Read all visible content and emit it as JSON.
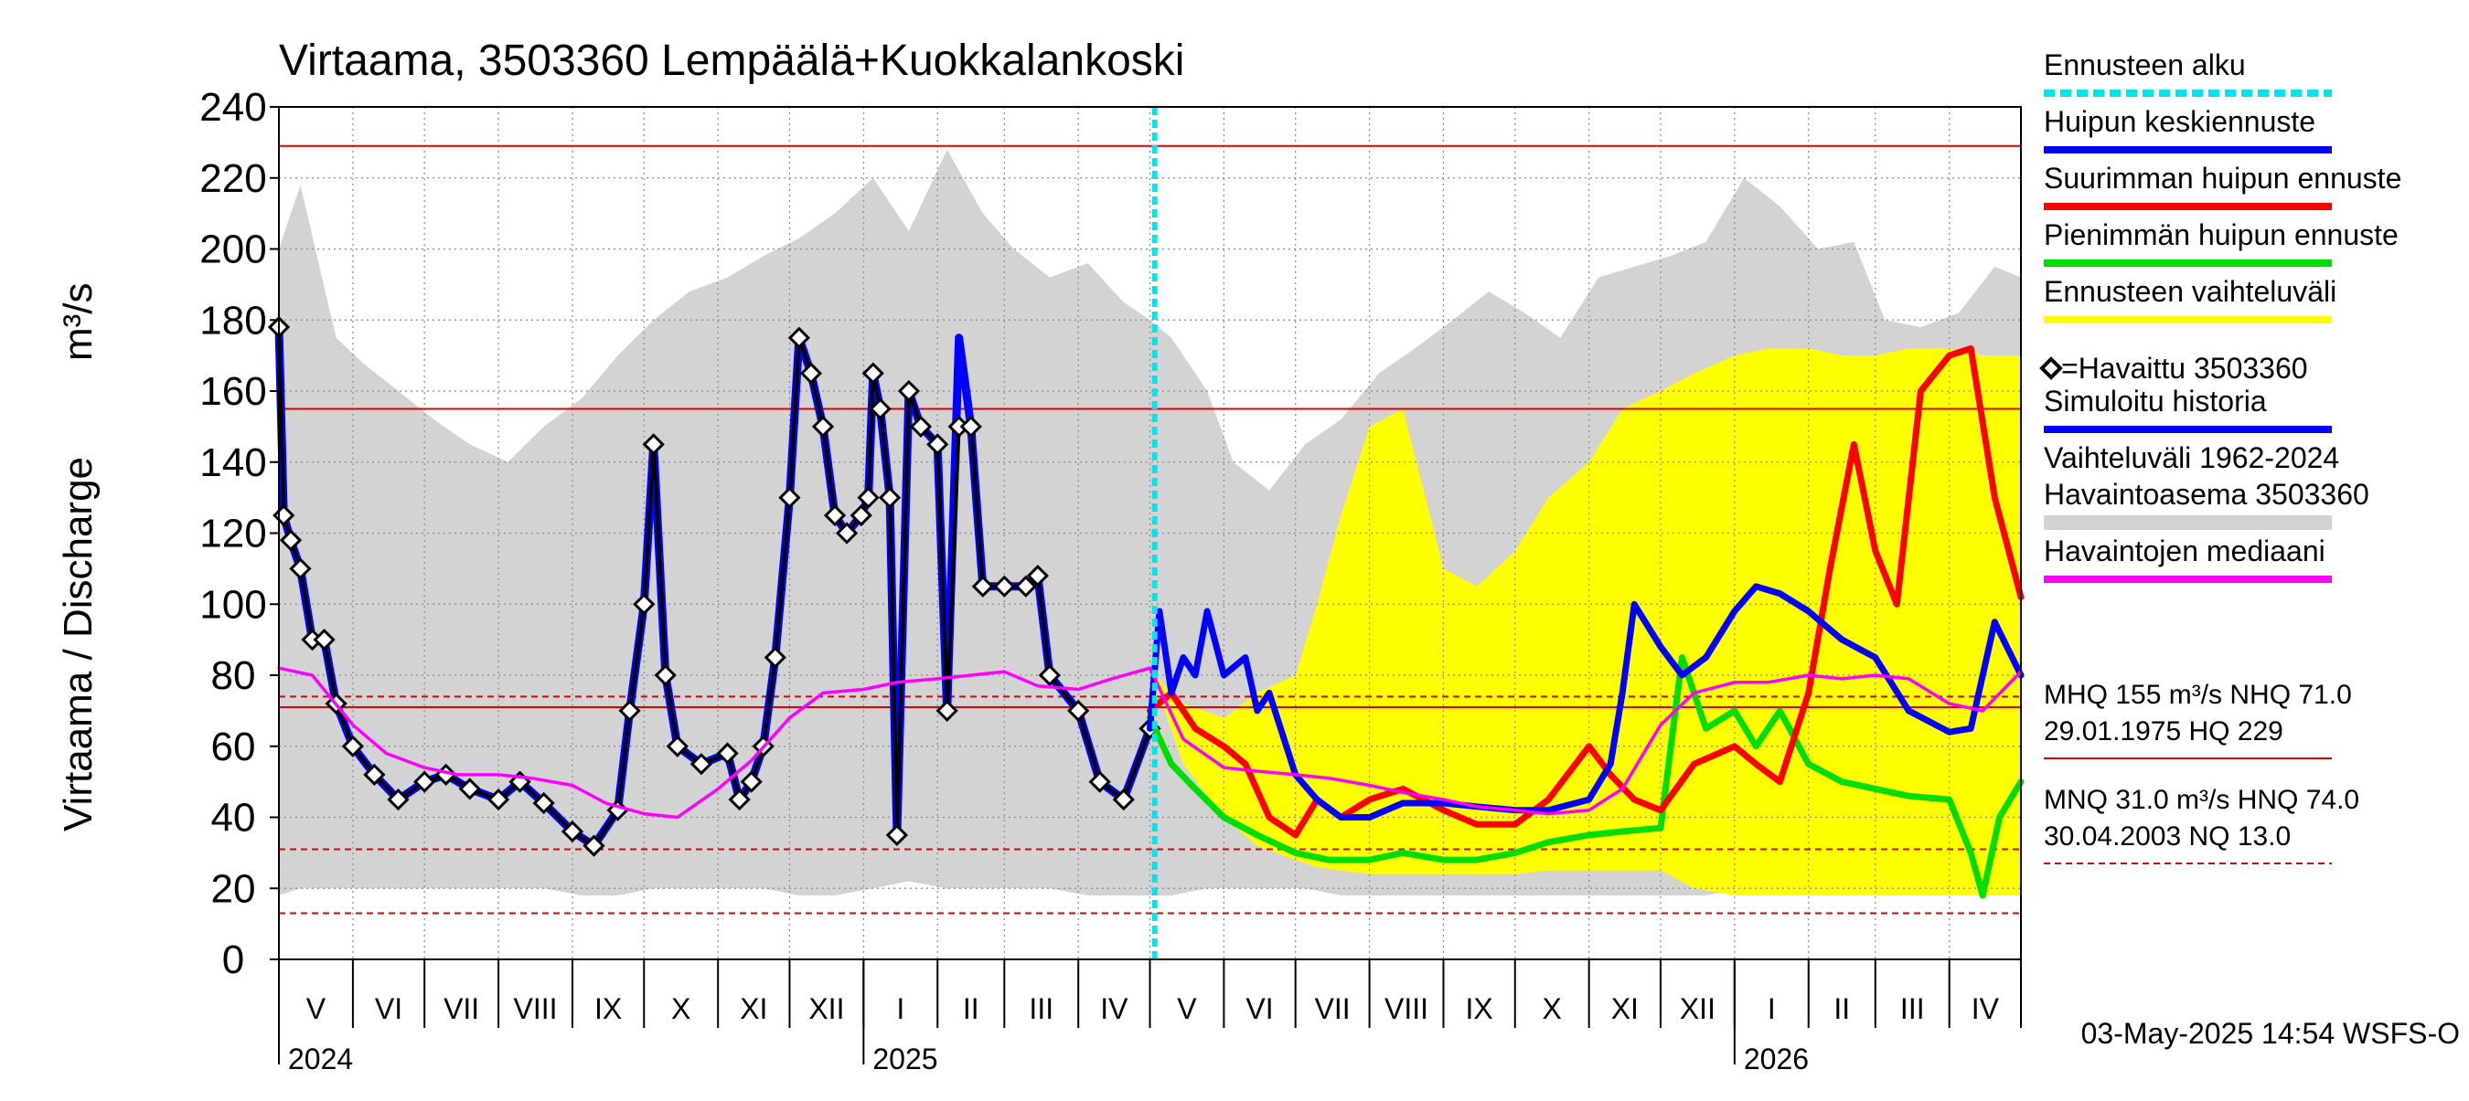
{
  "title": "Virtaama, 3503360 Lempäälä+Kuokkalankoski",
  "timestamp": "03-May-2025 14:54 WSFS-O",
  "y_axis_label": "Virtaama / Discharge",
  "y_axis_unit": "m³/s",
  "chart_data": {
    "type": "line",
    "x_range": [
      "2024-05-01",
      "2026-05-01"
    ],
    "ylim": [
      0,
      240
    ],
    "y_ticks": [
      0,
      20,
      40,
      60,
      80,
      100,
      120,
      140,
      160,
      180,
      200,
      220,
      240
    ],
    "grid": true,
    "month_labels": [
      "V",
      "VI",
      "VII",
      "VIII",
      "IX",
      "X",
      "XI",
      "XII",
      "I",
      "II",
      "III",
      "IV",
      "V",
      "VI",
      "VII",
      "VIII",
      "IX",
      "X",
      "XI",
      "XII",
      "I",
      "II",
      "III",
      "IV"
    ],
    "month_starts": [
      "2024-05-01",
      "2024-06-01",
      "2024-07-01",
      "2024-08-01",
      "2024-09-01",
      "2024-10-01",
      "2024-11-01",
      "2024-12-01",
      "2025-01-01",
      "2025-02-01",
      "2025-03-01",
      "2025-04-01",
      "2025-05-01",
      "2025-06-01",
      "2025-07-01",
      "2025-08-01",
      "2025-09-01",
      "2025-10-01",
      "2025-11-01",
      "2025-12-01",
      "2026-01-01",
      "2026-02-01",
      "2026-03-01",
      "2026-04-01"
    ],
    "year_labels": [
      {
        "label": "2024",
        "date": "2024-05-01"
      },
      {
        "label": "2025",
        "date": "2025-01-01"
      },
      {
        "label": "2026",
        "date": "2026-01-01"
      }
    ],
    "forecast_start": "2025-05-03",
    "reference_lines": [
      {
        "name": "HQ",
        "value": 229,
        "style": "solid"
      },
      {
        "name": "MHQ",
        "value": 155,
        "style": "solid"
      },
      {
        "name": "HNQ",
        "value": 74,
        "style": "dashed"
      },
      {
        "name": "NHQ",
        "value": 71,
        "style": "solid"
      },
      {
        "name": "MNQ",
        "value": 31,
        "style": "dashed"
      },
      {
        "name": "NQ",
        "value": 13,
        "style": "dashed"
      }
    ],
    "history_band": {
      "name": "Vaihteluväli 1962-2024 Havaintoasema 3503360",
      "color": "#d3d3d3",
      "x": [
        "2024-05-01",
        "2024-05-10",
        "2024-05-25",
        "2024-06-05",
        "2024-06-20",
        "2024-07-05",
        "2024-07-20",
        "2024-08-05",
        "2024-08-20",
        "2024-09-05",
        "2024-09-20",
        "2024-10-05",
        "2024-10-20",
        "2024-11-05",
        "2024-11-20",
        "2024-12-05",
        "2024-12-20",
        "2025-01-05",
        "2025-01-20",
        "2025-02-05",
        "2025-02-20",
        "2025-03-05",
        "2025-03-20",
        "2025-04-05",
        "2025-04-20",
        "2025-05-01",
        "2025-05-10",
        "2025-05-25",
        "2025-06-05",
        "2025-06-20",
        "2025-07-05",
        "2025-07-20",
        "2025-08-05",
        "2025-08-20",
        "2025-09-05",
        "2025-09-20",
        "2025-10-05",
        "2025-10-20",
        "2025-11-05",
        "2025-11-20",
        "2025-12-05",
        "2025-12-20",
        "2026-01-05",
        "2026-01-20",
        "2026-02-05",
        "2026-02-20",
        "2026-03-05",
        "2026-03-20",
        "2026-04-05",
        "2026-04-20",
        "2026-05-01"
      ],
      "upper": [
        200,
        218,
        175,
        168,
        160,
        152,
        145,
        140,
        150,
        158,
        170,
        180,
        188,
        192,
        198,
        203,
        210,
        220,
        205,
        228,
        210,
        200,
        192,
        196,
        185,
        180,
        175,
        160,
        140,
        132,
        145,
        152,
        165,
        172,
        180,
        188,
        182,
        175,
        192,
        195,
        198,
        202,
        220,
        212,
        200,
        202,
        180,
        178,
        182,
        195,
        192
      ],
      "lower": [
        18,
        20,
        20,
        20,
        20,
        20,
        20,
        20,
        20,
        18,
        18,
        20,
        20,
        20,
        20,
        18,
        18,
        20,
        22,
        20,
        20,
        20,
        20,
        18,
        18,
        18,
        18,
        20,
        20,
        20,
        20,
        18,
        18,
        18,
        18,
        18,
        18,
        18,
        18,
        18,
        18,
        18,
        20,
        20,
        20,
        20,
        20,
        18,
        18,
        18,
        18
      ]
    },
    "forecast_band": {
      "name": "Ennusteen vaihteluväli",
      "color": "#ffff00",
      "x": [
        "2025-05-03",
        "2025-05-15",
        "2025-06-01",
        "2025-06-15",
        "2025-07-01",
        "2025-07-10",
        "2025-07-20",
        "2025-08-01",
        "2025-08-15",
        "2025-09-01",
        "2025-09-15",
        "2025-10-01",
        "2025-10-15",
        "2025-11-01",
        "2025-11-15",
        "2025-12-01",
        "2025-12-15",
        "2026-01-01",
        "2026-01-15",
        "2026-02-01",
        "2026-02-15",
        "2026-03-01",
        "2026-03-15",
        "2026-04-01",
        "2026-04-15",
        "2026-05-01"
      ],
      "upper": [
        80,
        72,
        68,
        75,
        80,
        100,
        125,
        150,
        155,
        110,
        105,
        115,
        130,
        140,
        155,
        160,
        165,
        170,
        172,
        172,
        170,
        170,
        172,
        172,
        170,
        170
      ],
      "lower": [
        78,
        55,
        40,
        32,
        28,
        26,
        25,
        24,
        24,
        24,
        24,
        24,
        25,
        25,
        25,
        25,
        20,
        18,
        18,
        18,
        18,
        18,
        18,
        18,
        18,
        18
      ]
    },
    "series": [
      {
        "name": "Simuloitu historia",
        "color": "#0000ff",
        "x": [
          "2024-05-01",
          "2024-05-03",
          "2024-05-06",
          "2024-05-10",
          "2024-05-15",
          "2024-05-20",
          "2024-05-25",
          "2024-06-01",
          "2024-06-10",
          "2024-06-20",
          "2024-07-01",
          "2024-07-10",
          "2024-07-20",
          "2024-08-01",
          "2024-08-10",
          "2024-08-20",
          "2024-09-01",
          "2024-09-10",
          "2024-09-20",
          "2024-09-25",
          "2024-10-01",
          "2024-10-05",
          "2024-10-10",
          "2024-10-15",
          "2024-10-25",
          "2024-11-05",
          "2024-11-10",
          "2024-11-15",
          "2024-11-20",
          "2024-11-25",
          "2024-12-01",
          "2024-12-05",
          "2024-12-10",
          "2024-12-15",
          "2024-12-20",
          "2024-12-25",
          "2024-12-31",
          "2025-01-03",
          "2025-01-05",
          "2025-01-08",
          "2025-01-12",
          "2025-01-15",
          "2025-01-20",
          "2025-01-25",
          "2025-02-01",
          "2025-02-05",
          "2025-02-10",
          "2025-02-15",
          "2025-02-20",
          "2025-03-01",
          "2025-03-10",
          "2025-03-15",
          "2025-03-20",
          "2025-04-01",
          "2025-04-10",
          "2025-04-20",
          "2025-05-01"
        ],
        "values": [
          178,
          125,
          118,
          110,
          90,
          90,
          72,
          60,
          52,
          45,
          50,
          52,
          48,
          45,
          50,
          44,
          36,
          32,
          42,
          70,
          100,
          145,
          80,
          60,
          55,
          58,
          45,
          50,
          60,
          85,
          130,
          175,
          165,
          150,
          125,
          120,
          125,
          130,
          165,
          155,
          130,
          35,
          160,
          150,
          145,
          70,
          175,
          150,
          105,
          105,
          105,
          108,
          80,
          70,
          50,
          45,
          65
        ]
      },
      {
        "name": "Havaittu 3503360",
        "color": "#000000",
        "marker": "diamond",
        "x": [
          "2024-05-01",
          "2024-05-03",
          "2024-05-06",
          "2024-05-10",
          "2024-05-15",
          "2024-05-20",
          "2024-05-25",
          "2024-06-01",
          "2024-06-10",
          "2024-06-20",
          "2024-07-01",
          "2024-07-10",
          "2024-07-20",
          "2024-08-01",
          "2024-08-10",
          "2024-08-20",
          "2024-09-01",
          "2024-09-10",
          "2024-09-20",
          "2024-09-25",
          "2024-10-01",
          "2024-10-05",
          "2024-10-10",
          "2024-10-15",
          "2024-10-25",
          "2024-11-05",
          "2024-11-10",
          "2024-11-15",
          "2024-11-20",
          "2024-11-25",
          "2024-12-01",
          "2024-12-05",
          "2024-12-10",
          "2024-12-15",
          "2024-12-20",
          "2024-12-25",
          "2024-12-31",
          "2025-01-03",
          "2025-01-05",
          "2025-01-08",
          "2025-01-12",
          "2025-01-15",
          "2025-01-20",
          "2025-01-25",
          "2025-02-01",
          "2025-02-05",
          "2025-02-10",
          "2025-02-15",
          "2025-02-20",
          "2025-03-01",
          "2025-03-10",
          "2025-03-15",
          "2025-03-20",
          "2025-04-01",
          "2025-04-10",
          "2025-04-20",
          "2025-05-01"
        ],
        "values": [
          178,
          125,
          118,
          110,
          90,
          90,
          72,
          60,
          52,
          45,
          50,
          52,
          48,
          45,
          50,
          44,
          36,
          32,
          42,
          70,
          100,
          145,
          80,
          60,
          55,
          58,
          45,
          50,
          60,
          85,
          130,
          175,
          165,
          150,
          125,
          120,
          125,
          130,
          165,
          155,
          130,
          35,
          160,
          150,
          145,
          70,
          150,
          150,
          105,
          105,
          105,
          108,
          80,
          70,
          50,
          45,
          65
        ]
      },
      {
        "name": "Havaintojen mediaani",
        "color": "#ff00ff",
        "x": [
          "2024-05-01",
          "2024-05-15",
          "2024-06-01",
          "2024-06-15",
          "2024-07-01",
          "2024-07-15",
          "2024-08-01",
          "2024-08-15",
          "2024-09-01",
          "2024-09-15",
          "2024-10-01",
          "2024-10-15",
          "2024-11-01",
          "2024-11-15",
          "2024-12-01",
          "2024-12-15",
          "2025-01-01",
          "2025-01-15",
          "2025-02-01",
          "2025-02-15",
          "2025-03-01",
          "2025-03-15",
          "2025-04-01",
          "2025-04-15",
          "2025-05-01",
          "2025-05-15",
          "2025-06-01",
          "2025-06-15",
          "2025-07-01",
          "2025-07-15",
          "2025-08-01",
          "2025-08-15",
          "2025-09-01",
          "2025-09-15",
          "2025-10-01",
          "2025-10-15",
          "2025-11-01",
          "2025-11-15",
          "2025-12-01",
          "2025-12-15",
          "2026-01-01",
          "2026-01-15",
          "2026-02-01",
          "2026-02-15",
          "2026-03-01",
          "2026-03-15",
          "2026-04-01",
          "2026-04-15",
          "2026-05-01"
        ],
        "values": [
          82,
          80,
          66,
          58,
          54,
          52,
          52,
          51,
          49,
          44,
          41,
          40,
          48,
          56,
          68,
          75,
          76,
          78,
          79,
          80,
          81,
          77,
          76,
          79,
          82,
          62,
          54,
          53,
          52,
          51,
          49,
          47,
          45,
          43,
          42,
          41,
          42,
          48,
          66,
          75,
          78,
          78,
          80,
          79,
          80,
          79,
          72,
          70,
          81
        ]
      },
      {
        "name": "Huipun keskiennuste",
        "color": "#0000ff",
        "x": [
          "2025-05-01",
          "2025-05-05",
          "2025-05-10",
          "2025-05-15",
          "2025-05-20",
          "2025-05-25",
          "2025-06-01",
          "2025-06-10",
          "2025-06-15",
          "2025-06-20",
          "2025-07-01",
          "2025-07-10",
          "2025-07-20",
          "2025-08-01",
          "2025-08-15",
          "2025-09-01",
          "2025-09-15",
          "2025-10-01",
          "2025-10-15",
          "2025-11-01",
          "2025-11-10",
          "2025-11-15",
          "2025-11-20",
          "2025-12-01",
          "2025-12-10",
          "2025-12-20",
          "2026-01-01",
          "2026-01-10",
          "2026-01-20",
          "2026-02-01",
          "2026-02-15",
          "2026-03-01",
          "2026-03-15",
          "2026-04-01",
          "2026-04-10",
          "2026-04-20",
          "2026-05-01"
        ],
        "values": [
          65,
          98,
          75,
          85,
          80,
          98,
          80,
          85,
          70,
          75,
          52,
          45,
          40,
          40,
          44,
          44,
          43,
          42,
          42,
          45,
          55,
          75,
          100,
          88,
          80,
          85,
          98,
          105,
          103,
          98,
          90,
          85,
          70,
          64,
          65,
          95,
          80
        ]
      },
      {
        "name": "Suurimman huipun ennuste",
        "color": "#ff0000",
        "x": [
          "2025-05-01",
          "2025-05-10",
          "2025-05-20",
          "2025-06-01",
          "2025-06-10",
          "2025-06-20",
          "2025-07-01",
          "2025-07-10",
          "2025-07-20",
          "2025-08-01",
          "2025-08-15",
          "2025-09-01",
          "2025-09-15",
          "2025-10-01",
          "2025-10-15",
          "2025-11-01",
          "2025-11-10",
          "2025-11-20",
          "2025-12-01",
          "2025-12-15",
          "2026-01-01",
          "2026-01-10",
          "2026-01-20",
          "2026-02-01",
          "2026-02-10",
          "2026-02-20",
          "2026-03-01",
          "2026-03-10",
          "2026-03-20",
          "2026-04-01",
          "2026-04-10",
          "2026-04-20",
          "2026-05-01"
        ],
        "values": [
          70,
          75,
          65,
          60,
          55,
          40,
          35,
          45,
          40,
          45,
          48,
          42,
          38,
          38,
          45,
          60,
          52,
          45,
          42,
          55,
          60,
          55,
          50,
          75,
          110,
          145,
          115,
          100,
          160,
          170,
          172,
          130,
          102
        ]
      },
      {
        "name": "Pienimmän huipun ennuste",
        "color": "#00dd00",
        "x": [
          "2025-05-01",
          "2025-05-10",
          "2025-05-20",
          "2025-06-01",
          "2025-06-15",
          "2025-07-01",
          "2025-07-15",
          "2025-08-01",
          "2025-08-15",
          "2025-09-01",
          "2025-09-15",
          "2025-10-01",
          "2025-10-15",
          "2025-11-01",
          "2025-11-15",
          "2025-12-01",
          "2025-12-10",
          "2025-12-20",
          "2026-01-01",
          "2026-01-10",
          "2026-01-20",
          "2026-02-01",
          "2026-02-15",
          "2026-03-01",
          "2026-03-15",
          "2026-04-01",
          "2026-04-10",
          "2026-04-15",
          "2026-04-22",
          "2026-05-01"
        ],
        "values": [
          68,
          55,
          48,
          40,
          35,
          30,
          28,
          28,
          30,
          28,
          28,
          30,
          33,
          35,
          36,
          37,
          85,
          65,
          70,
          60,
          70,
          55,
          50,
          48,
          46,
          45,
          30,
          18,
          40,
          50
        ]
      }
    ],
    "legend": [
      {
        "label": "Ennusteen alku",
        "color": "#00e5ee",
        "style": "dashed"
      },
      {
        "label": "Huipun keskiennuste",
        "color": "#0000ff",
        "style": "line"
      },
      {
        "label": "Suurimman huipun ennuste",
        "color": "#ff0000",
        "style": "line"
      },
      {
        "label": "Pienimmän huipun ennuste",
        "color": "#00dd00",
        "style": "line"
      },
      {
        "label": "Ennusteen vaihteluväli",
        "color": "#ffff00",
        "style": "line"
      },
      {
        "label": "=Havaittu 3503360",
        "color": "#000000",
        "style": "diamond"
      },
      {
        "label": "Simuloitu historia",
        "color": "#0000ff",
        "style": "line"
      },
      {
        "label": "Vaihteluväli 1962-2024",
        "label2": " Havaintoasema 3503360",
        "color": "#d3d3d3",
        "style": "band"
      },
      {
        "label": "Havaintojen mediaani",
        "color": "#ff00ff",
        "style": "line"
      }
    ],
    "stats": [
      {
        "line1": "MHQ  155 m³/s NHQ 71.0",
        "line2": "29.01.1975 HQ  229",
        "line_style": "solid"
      },
      {
        "line1": "MNQ  31.0 m³/s HNQ 74.0",
        "line2": "30.04.2003 NQ 13.0",
        "line_style": "dashed"
      }
    ]
  }
}
